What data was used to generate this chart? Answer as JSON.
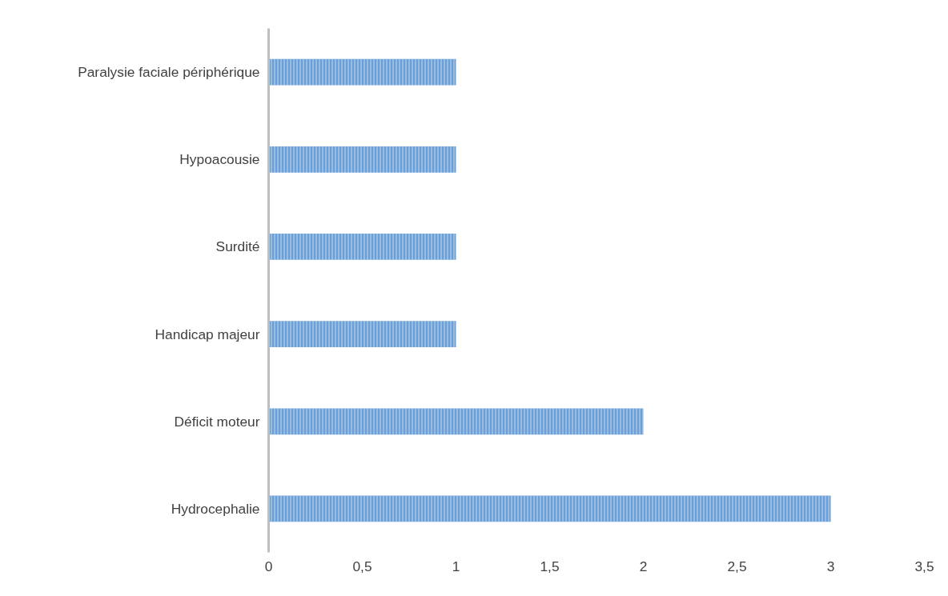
{
  "chart_data": {
    "type": "bar",
    "orientation": "horizontal",
    "categories": [
      "Paralysie faciale périphérique",
      "Hypoacousie",
      "Surdité",
      "Handicap majeur",
      "Déficit moteur",
      "Hydrocephalie"
    ],
    "values": [
      1,
      1,
      1,
      1,
      2,
      3
    ],
    "color": "#6a9fd8",
    "xlim": [
      0,
      3.5
    ],
    "xticks": [
      0,
      {
        "value": 0.5,
        "label": "0,5"
      },
      1,
      {
        "value": 1.5,
        "label": "1,5"
      },
      2,
      {
        "value": 2.5,
        "label": "2,5"
      },
      3,
      {
        "value": 3.5,
        "label": "3,5"
      }
    ],
    "grid": false
  }
}
